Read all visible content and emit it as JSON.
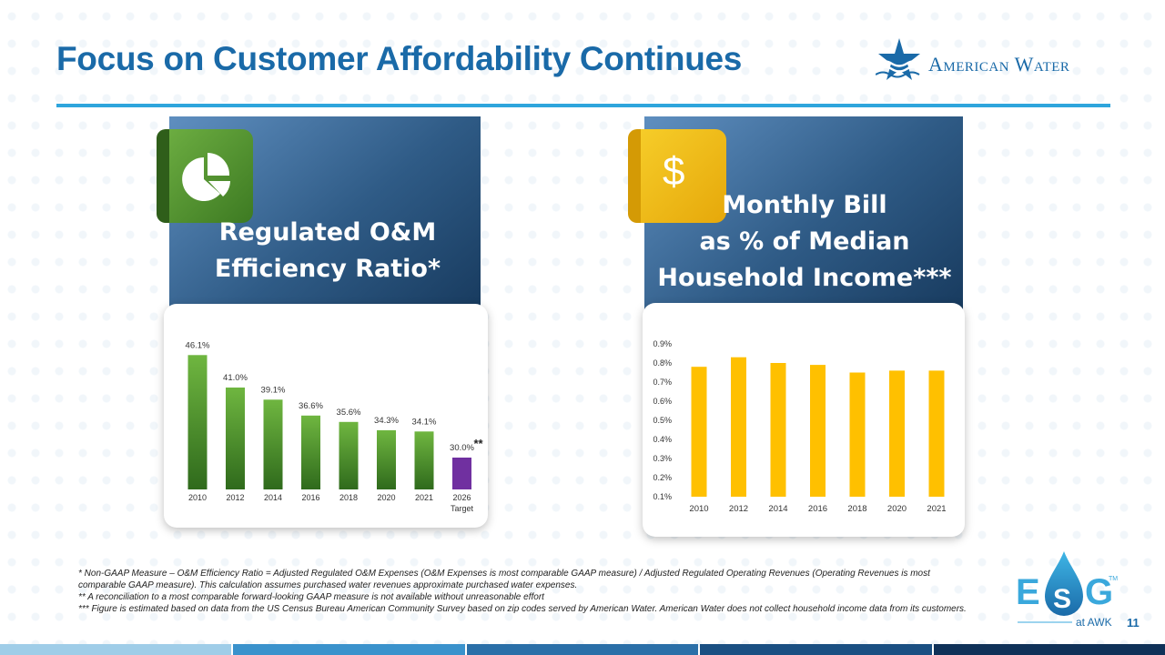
{
  "title": "Focus on Customer Affordability Continues",
  "logo": {
    "text": "American Water",
    "icon": "star-wave-icon"
  },
  "left_panel": {
    "title_line1": "Regulated O&M",
    "title_line2": "Efficiency Ratio*",
    "icon": "pie-chart-icon"
  },
  "right_panel": {
    "title_line1": "Monthly Bill",
    "title_line2": "as % of Median",
    "title_line3": "Household Income***",
    "icon": "dollar-icon",
    "icon_glyph": "$"
  },
  "colors": {
    "brand_blue": "#1a6aa8",
    "green": "#5a9e35",
    "purple": "#7030a0",
    "yellow": "#ffc000"
  },
  "chart_data": [
    {
      "type": "bar",
      "title": "Regulated O&M Efficiency Ratio*",
      "categories": [
        "2010",
        "2012",
        "2014",
        "2016",
        "2018",
        "2020",
        "2021",
        "2026"
      ],
      "category_sublabels": [
        "",
        "",
        "",
        "",
        "",
        "",
        "",
        "Target"
      ],
      "values": [
        46.1,
        41.0,
        39.1,
        36.6,
        35.6,
        34.3,
        34.1,
        30.0
      ],
      "data_labels": [
        "46.1%",
        "41.0%",
        "39.1%",
        "36.6%",
        "35.6%",
        "34.3%",
        "34.1%",
        "30.0%"
      ],
      "highlight_index": 7,
      "highlight_annotation": "**",
      "ylim": [
        25,
        47
      ]
    },
    {
      "type": "bar",
      "title": "Monthly Bill as % of Median Household Income***",
      "categories": [
        "2010",
        "2012",
        "2014",
        "2016",
        "2018",
        "2020",
        "2021"
      ],
      "values": [
        0.78,
        0.83,
        0.8,
        0.79,
        0.75,
        0.76,
        0.76
      ],
      "ylim": [
        0.1,
        0.9
      ],
      "yticks": [
        "0.1%",
        "0.2%",
        "0.3%",
        "0.4%",
        "0.5%",
        "0.6%",
        "0.7%",
        "0.8%",
        "0.9%"
      ]
    }
  ],
  "footnotes": [
    "* Non-GAAP Measure – O&M Efficiency Ratio = Adjusted Regulated O&M Expenses (O&M Expenses is most comparable GAAP measure) / Adjusted Regulated Operating Revenues (Operating Revenues is most comparable GAAP measure). This calculation assumes purchased water revenues approximate purchased water expenses.",
    "** A reconciliation to a most comparable forward-looking GAAP measure is not available without unreasonable effort",
    "*** Figure is estimated based on data from the US Census Bureau American Community Survey based on zip codes served by American Water.  American Water does not collect household income data from its customers."
  ],
  "esg": {
    "letters": "ESG",
    "tm": "TM",
    "subtitle": "at AWK",
    "icon": "water-drop-icon"
  },
  "page_number": "11",
  "bottom_bar_colors": [
    "#9fcde8",
    "#3a92cc",
    "#2a6fa8",
    "#1a4f82",
    "#0f3158"
  ]
}
